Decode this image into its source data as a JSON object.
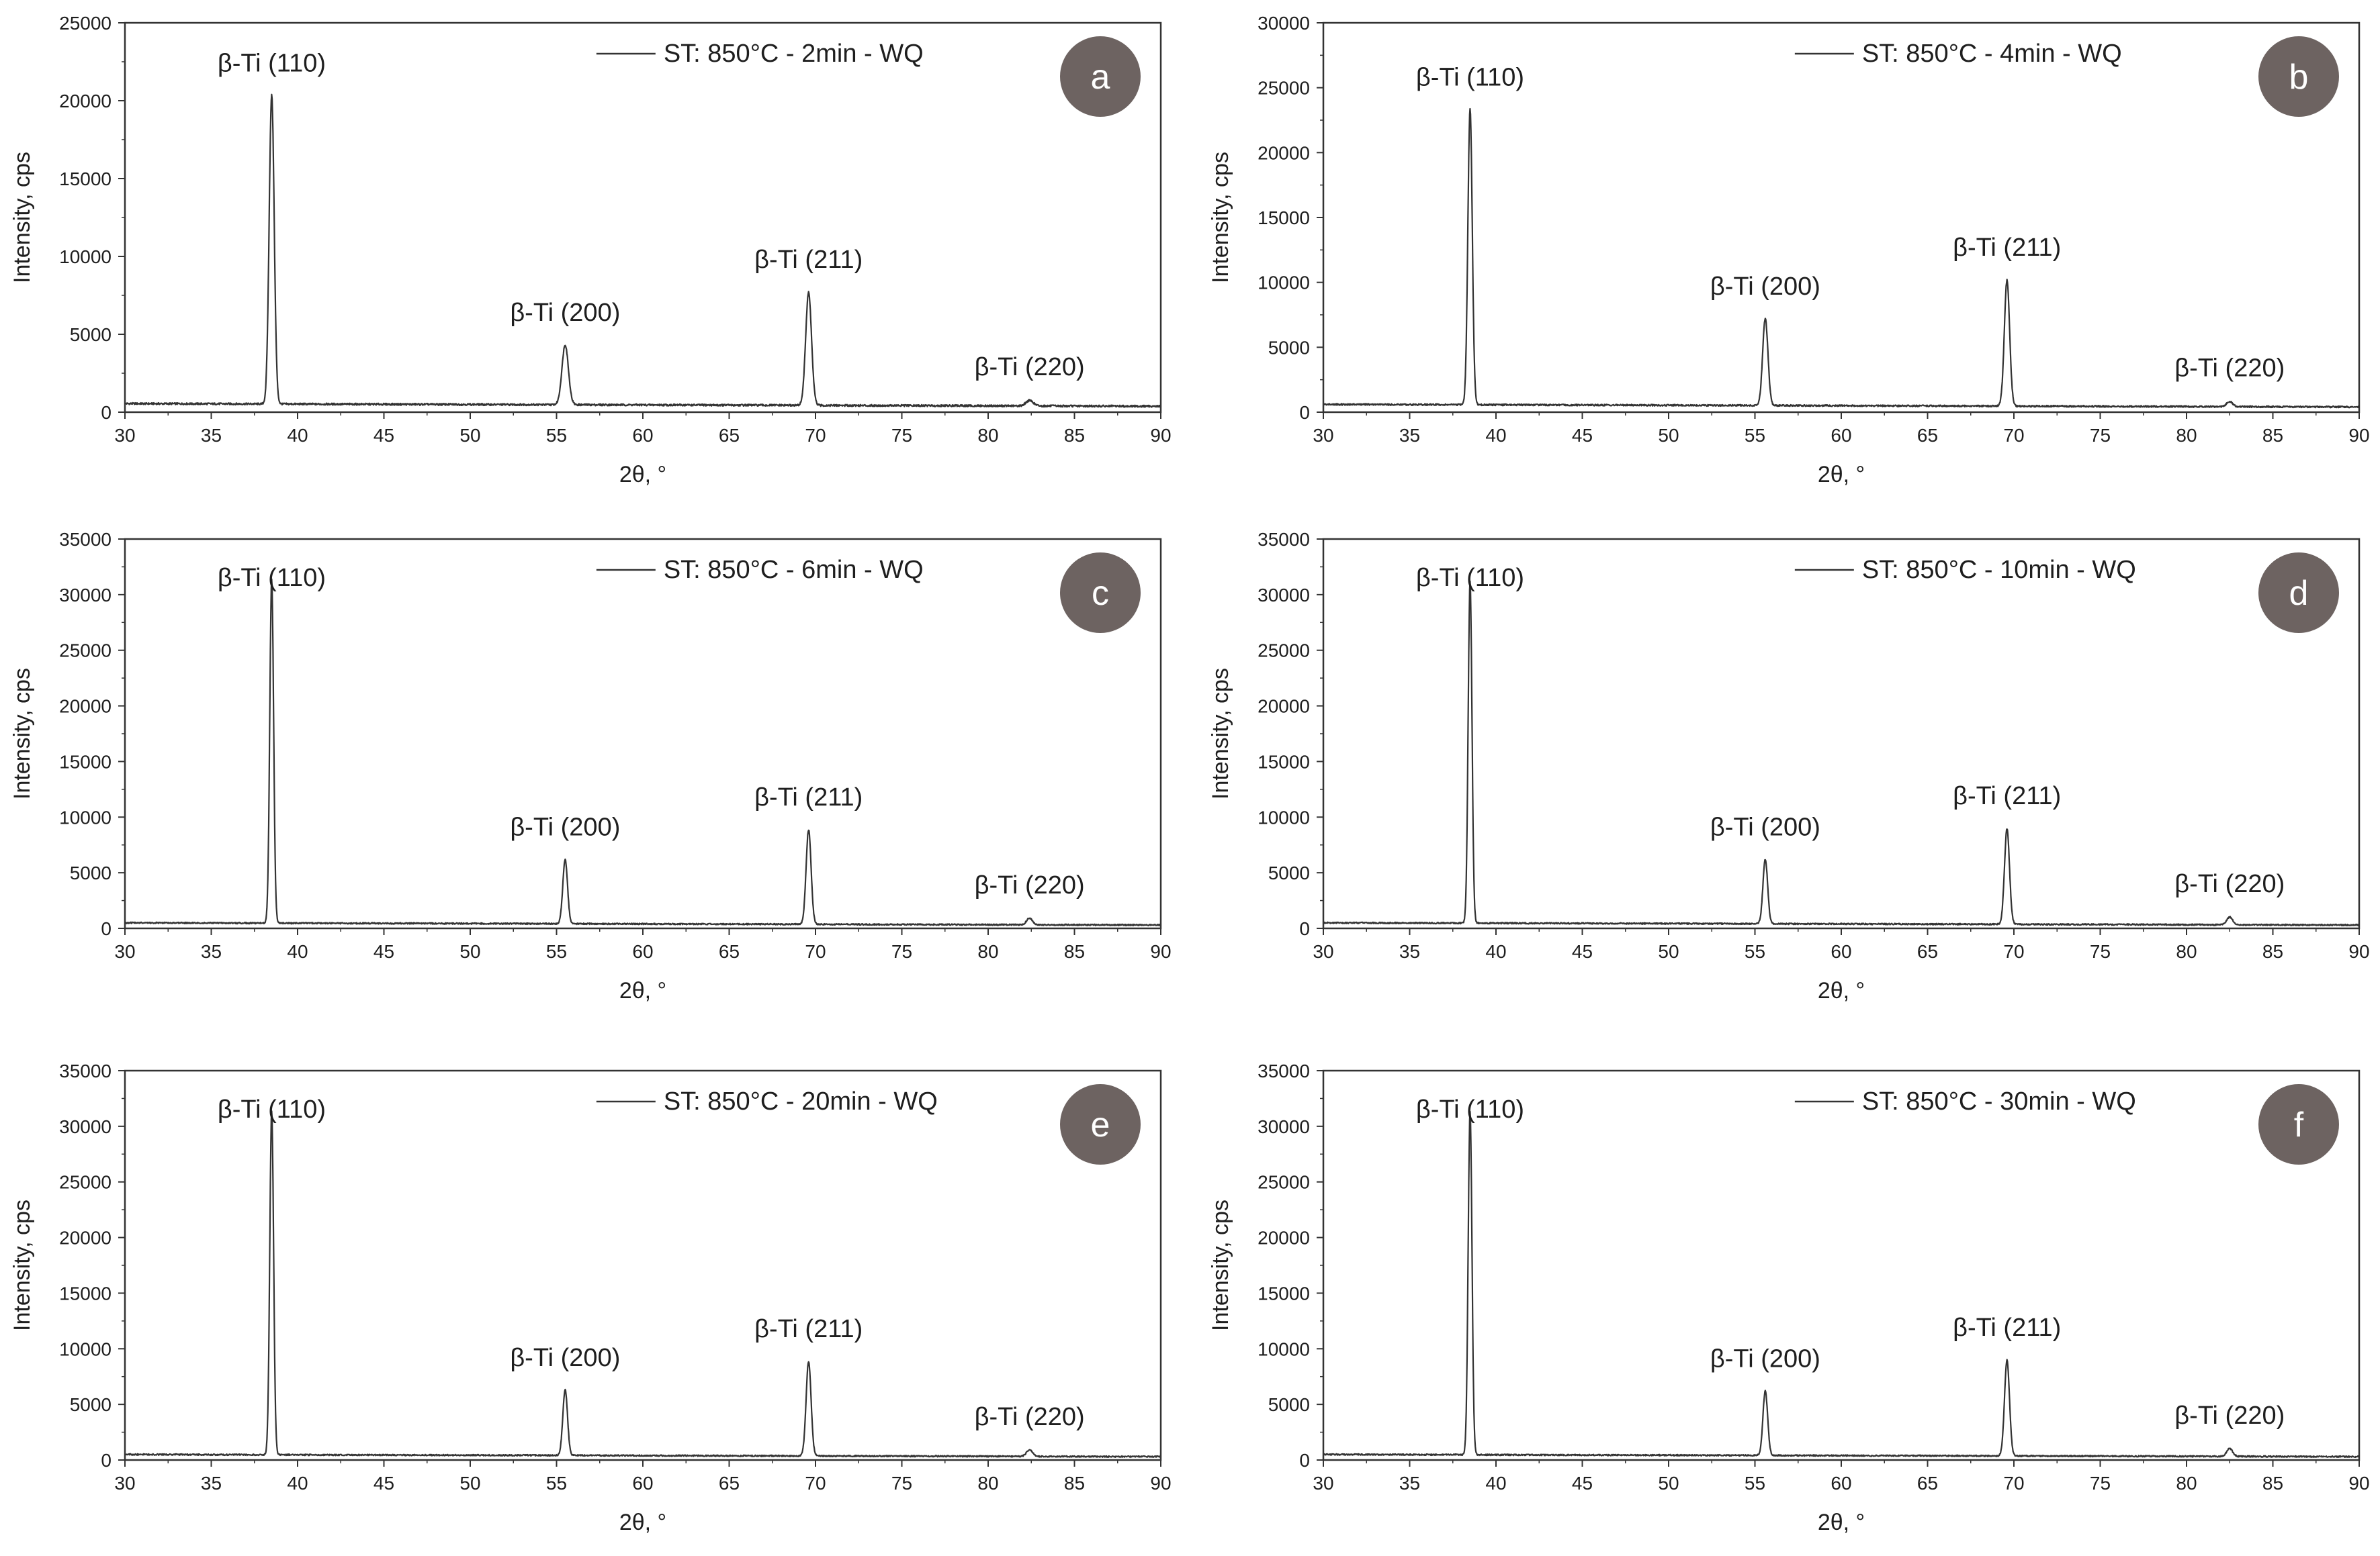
{
  "figure": {
    "panels": [
      {
        "id": "a",
        "legend": "ST: 850°C - 2min - WQ"
      },
      {
        "id": "b",
        "legend": "ST: 850°C - 4min - WQ"
      },
      {
        "id": "c",
        "legend": "ST: 850°C - 6min - WQ"
      },
      {
        "id": "d",
        "legend": "ST: 850°C - 10min - WQ"
      },
      {
        "id": "e",
        "legend": "ST: 850°C - 20min - WQ"
      },
      {
        "id": "f",
        "legend": "ST: 850°C - 30min - WQ"
      }
    ]
  },
  "chart_data": [
    {
      "type": "line",
      "panel": "a",
      "xlabel": "2θ, °",
      "ylabel": "Intensity, cps",
      "xlim": [
        30,
        90
      ],
      "ylim": [
        0,
        25000
      ],
      "xticks": [
        30,
        35,
        40,
        45,
        50,
        55,
        60,
        65,
        70,
        75,
        80,
        85,
        90
      ],
      "yticks": [
        0,
        5000,
        10000,
        15000,
        20000,
        25000
      ],
      "grid": false,
      "legend_position": "top-center",
      "series": [
        {
          "name": "ST: 850°C - 2min - WQ",
          "color": "#333333",
          "baseline_start": 550,
          "baseline_end": 380
        }
      ],
      "peaks": [
        {
          "x": 38.5,
          "y": 20400,
          "label": "β-Ti (110)",
          "width": 0.17
        },
        {
          "x": 55.5,
          "y": 4400,
          "label": "β-Ti (200)",
          "width": 0.22
        },
        {
          "x": 69.6,
          "y": 7800,
          "label": "β-Ti (211)",
          "width": 0.2
        },
        {
          "x": 82.4,
          "y": 900,
          "label": "β-Ti (220)",
          "width": 0.25
        }
      ]
    },
    {
      "type": "line",
      "panel": "b",
      "xlabel": "2θ, °",
      "ylabel": "Intensity, cps",
      "xlim": [
        30,
        90
      ],
      "ylim": [
        0,
        30000
      ],
      "xticks": [
        30,
        35,
        40,
        45,
        50,
        55,
        60,
        65,
        70,
        75,
        80,
        85,
        90
      ],
      "yticks": [
        0,
        5000,
        10000,
        15000,
        20000,
        25000,
        30000
      ],
      "grid": false,
      "legend_position": "top-center",
      "series": [
        {
          "name": "ST: 850°C - 4min - WQ",
          "color": "#333333",
          "baseline_start": 600,
          "baseline_end": 400
        }
      ],
      "peaks": [
        {
          "x": 38.5,
          "y": 23400,
          "label": "β-Ti (110)",
          "width": 0.15
        },
        {
          "x": 55.6,
          "y": 7300,
          "label": "β-Ti (200)",
          "width": 0.18
        },
        {
          "x": 69.6,
          "y": 10300,
          "label": "β-Ti (211)",
          "width": 0.18
        },
        {
          "x": 82.5,
          "y": 1000,
          "label": "β-Ti (220)",
          "width": 0.2
        }
      ]
    },
    {
      "type": "line",
      "panel": "c",
      "xlabel": "2θ, °",
      "ylabel": "Intensity, cps",
      "xlim": [
        30,
        90
      ],
      "ylim": [
        0,
        35000
      ],
      "xticks": [
        30,
        35,
        40,
        45,
        50,
        55,
        60,
        65,
        70,
        75,
        80,
        85,
        90
      ],
      "yticks": [
        0,
        5000,
        10000,
        15000,
        20000,
        25000,
        30000,
        35000
      ],
      "grid": false,
      "legend_position": "top-center",
      "series": [
        {
          "name": "ST: 850°C - 6min - WQ",
          "color": "#333333",
          "baseline_start": 500,
          "baseline_end": 300
        }
      ],
      "peaks": [
        {
          "x": 38.5,
          "y": 31400,
          "label": "β-Ti (110)",
          "width": 0.13
        },
        {
          "x": 55.5,
          "y": 6300,
          "label": "β-Ti (200)",
          "width": 0.16
        },
        {
          "x": 69.6,
          "y": 9000,
          "label": "β-Ti (211)",
          "width": 0.17
        },
        {
          "x": 82.4,
          "y": 1100,
          "label": "β-Ti (220)",
          "width": 0.2
        }
      ]
    },
    {
      "type": "line",
      "panel": "d",
      "xlabel": "2θ, °",
      "ylabel": "Intensity, cps",
      "xlim": [
        30,
        90
      ],
      "ylim": [
        0,
        35000
      ],
      "xticks": [
        30,
        35,
        40,
        45,
        50,
        55,
        60,
        65,
        70,
        75,
        80,
        85,
        90
      ],
      "yticks": [
        0,
        5000,
        10000,
        15000,
        20000,
        25000,
        30000,
        35000
      ],
      "grid": false,
      "legend_position": "top-center",
      "series": [
        {
          "name": "ST: 850°C - 10min - WQ",
          "color": "#333333",
          "baseline_start": 500,
          "baseline_end": 300
        }
      ],
      "peaks": [
        {
          "x": 38.5,
          "y": 31200,
          "label": "β-Ti (110)",
          "width": 0.13
        },
        {
          "x": 55.6,
          "y": 6300,
          "label": "β-Ti (200)",
          "width": 0.16
        },
        {
          "x": 69.6,
          "y": 9100,
          "label": "β-Ti (211)",
          "width": 0.17
        },
        {
          "x": 82.5,
          "y": 1200,
          "label": "β-Ti (220)",
          "width": 0.2
        }
      ]
    },
    {
      "type": "line",
      "panel": "e",
      "xlabel": "2θ, °",
      "ylabel": "Intensity, cps",
      "xlim": [
        30,
        90
      ],
      "ylim": [
        0,
        35000
      ],
      "xticks": [
        30,
        35,
        40,
        45,
        50,
        55,
        60,
        65,
        70,
        75,
        80,
        85,
        90
      ],
      "yticks": [
        0,
        5000,
        10000,
        15000,
        20000,
        25000,
        30000,
        35000
      ],
      "grid": false,
      "legend_position": "top-center",
      "series": [
        {
          "name": "ST: 850°C - 20min - WQ",
          "color": "#333333",
          "baseline_start": 500,
          "baseline_end": 300
        }
      ],
      "peaks": [
        {
          "x": 38.5,
          "y": 31400,
          "label": "β-Ti (110)",
          "width": 0.13
        },
        {
          "x": 55.5,
          "y": 6400,
          "label": "β-Ti (200)",
          "width": 0.16
        },
        {
          "x": 69.6,
          "y": 9000,
          "label": "β-Ti (211)",
          "width": 0.17
        },
        {
          "x": 82.4,
          "y": 1100,
          "label": "β-Ti (220)",
          "width": 0.2
        }
      ]
    },
    {
      "type": "line",
      "panel": "f",
      "xlabel": "2θ, °",
      "ylabel": "Intensity, cps",
      "xlim": [
        30,
        90
      ],
      "ylim": [
        0,
        35000
      ],
      "xticks": [
        30,
        35,
        40,
        45,
        50,
        55,
        60,
        65,
        70,
        75,
        80,
        85,
        90
      ],
      "yticks": [
        0,
        5000,
        10000,
        15000,
        20000,
        25000,
        30000,
        35000
      ],
      "grid": false,
      "legend_position": "top-center",
      "series": [
        {
          "name": "ST: 850°C - 30min - WQ",
          "color": "#333333",
          "baseline_start": 500,
          "baseline_end": 300
        }
      ],
      "peaks": [
        {
          "x": 38.5,
          "y": 31400,
          "label": "β-Ti (110)",
          "width": 0.13
        },
        {
          "x": 55.6,
          "y": 6300,
          "label": "β-Ti (200)",
          "width": 0.16
        },
        {
          "x": 69.6,
          "y": 9100,
          "label": "β-Ti (211)",
          "width": 0.17
        },
        {
          "x": 82.5,
          "y": 1200,
          "label": "β-Ti (220)",
          "width": 0.2
        }
      ]
    }
  ]
}
